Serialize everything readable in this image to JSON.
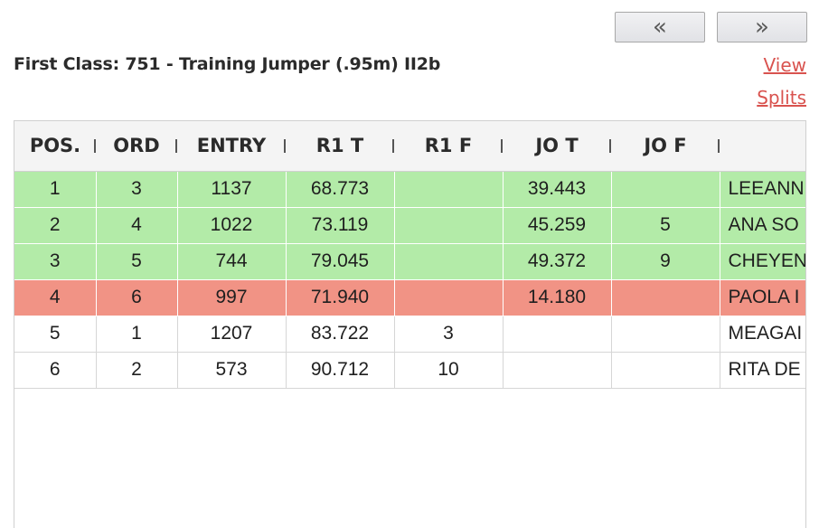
{
  "nav": {
    "prev_label": "«",
    "next_label": "»"
  },
  "class_title": "First Class: 751 - Training Jumper (.95m) II2b",
  "links": {
    "view": "View",
    "splits": "Splits"
  },
  "columns": [
    "POS.",
    "ORD",
    "ENTRY",
    "R1 T",
    "R1 F",
    "JO T",
    "JO F",
    ""
  ],
  "rows": [
    {
      "status": "green",
      "pos": "1",
      "ord": "3",
      "entry": "1137",
      "r1t": "68.773",
      "r1f": "",
      "jot": "39.443",
      "jof": "",
      "rider": "LEEANN"
    },
    {
      "status": "green",
      "pos": "2",
      "ord": "4",
      "entry": "1022",
      "r1t": "73.119",
      "r1f": "",
      "jot": "45.259",
      "jof": "5",
      "rider": "ANA SO"
    },
    {
      "status": "green",
      "pos": "3",
      "ord": "5",
      "entry": "744",
      "r1t": "79.045",
      "r1f": "",
      "jot": "49.372",
      "jof": "9",
      "rider": "CHEYEN"
    },
    {
      "status": "red",
      "pos": "4",
      "ord": "6",
      "entry": "997",
      "r1t": "71.940",
      "r1f": "",
      "jot": "14.180",
      "jof": "",
      "rider": "PAOLA I"
    },
    {
      "status": "plain",
      "pos": "5",
      "ord": "1",
      "entry": "1207",
      "r1t": "83.722",
      "r1f": "3",
      "jot": "",
      "jof": "",
      "rider": "MEAGAI"
    },
    {
      "status": "plain",
      "pos": "6",
      "ord": "2",
      "entry": "573",
      "r1t": "90.712",
      "r1f": "10",
      "jot": "",
      "jof": "",
      "rider": "RITA DE"
    }
  ],
  "colors": {
    "qualified": "#b3eba8",
    "eliminated": "#f19385",
    "link": "#d9534f"
  }
}
